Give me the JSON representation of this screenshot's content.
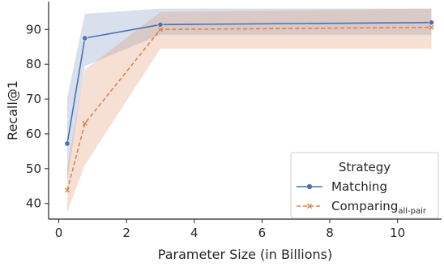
{
  "chart_data": {
    "type": "line",
    "xlabel": "Parameter Size (in Billions)",
    "ylabel": "Recall@1",
    "xlim": [
      -0.3,
      11.3
    ],
    "ylim": [
      35.5,
      98
    ],
    "xticks": [
      0,
      2,
      4,
      6,
      8,
      10
    ],
    "yticks": [
      40,
      50,
      60,
      70,
      80,
      90
    ],
    "grid": false,
    "legend": {
      "title": "Strategy",
      "placement": "bottom-right"
    },
    "series": [
      {
        "name": "Matching",
        "name_sub": "",
        "color": "#4c72b0",
        "linestyle": "solid",
        "marker": "circle",
        "x": [
          0.25,
          0.77,
          3,
          11
        ],
        "y": [
          57.2,
          87.5,
          91.4,
          92.0
        ],
        "ci_lower": [
          46.5,
          79.5,
          88.5,
          88.5
        ],
        "ci_upper": [
          70.5,
          94.5,
          96.0,
          96.0
        ]
      },
      {
        "name": "Comparing",
        "name_sub": "all-pair",
        "color": "#dd8452",
        "linestyle": "dashed",
        "marker": "x",
        "x": [
          0.25,
          0.77,
          3,
          11
        ],
        "y": [
          43.8,
          63.0,
          90.0,
          90.6
        ],
        "ci_lower": [
          37.5,
          51.0,
          84.5,
          84.5
        ],
        "ci_upper": [
          50.5,
          78.5,
          95.0,
          96.0
        ]
      }
    ]
  }
}
